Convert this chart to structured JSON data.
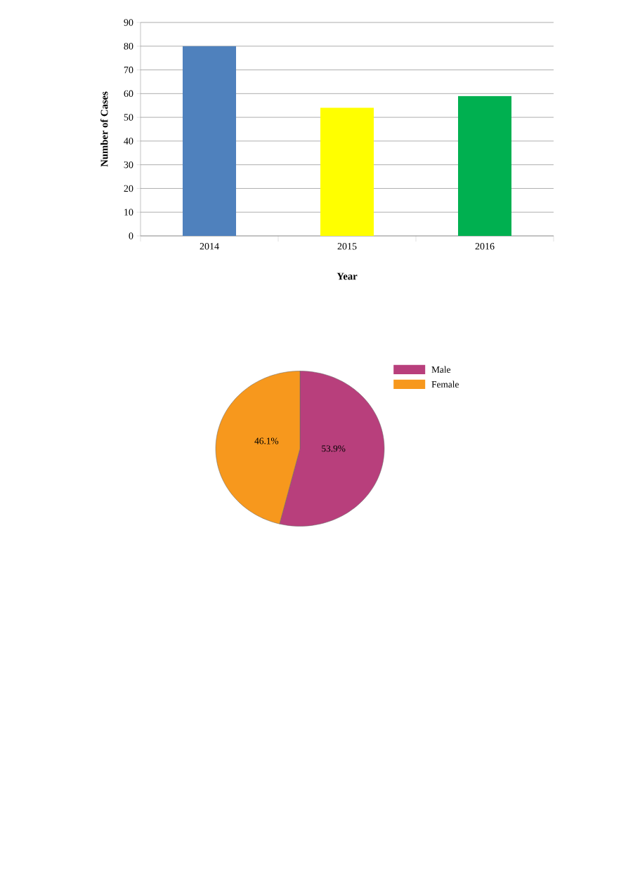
{
  "chart_data": [
    {
      "type": "bar",
      "xlabel": "Year",
      "ylabel": "Number of Cases",
      "categories": [
        "2014",
        "2015",
        "2016"
      ],
      "values": [
        80,
        54,
        59
      ],
      "colors": [
        "#4f81bd",
        "#ffff00",
        "#00b050"
      ],
      "ylim": [
        0,
        90
      ],
      "yticks": [
        0,
        10,
        20,
        30,
        40,
        50,
        60,
        70,
        80,
        90
      ],
      "grid": "y"
    },
    {
      "type": "pie",
      "categories": [
        "Male",
        "Female"
      ],
      "values": [
        53.9,
        46.1
      ],
      "colors": [
        "#b83f7c",
        "#f7981d"
      ],
      "value_labels": [
        "53.9%",
        "46.1%"
      ],
      "legend": "top right"
    }
  ]
}
